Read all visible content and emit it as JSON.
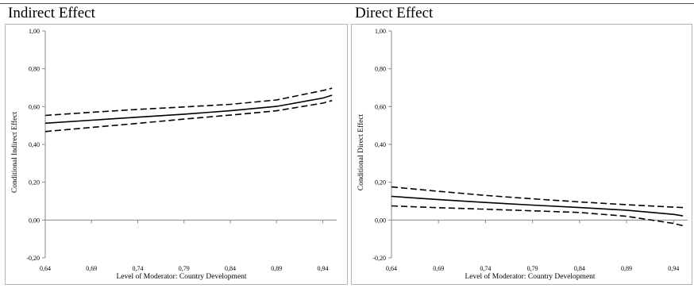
{
  "chart_data": [
    {
      "type": "line",
      "title": "Indirect Effect",
      "xlabel": "Level of Moderator: Country Development",
      "ylabel": "Conditional Indirect Effect",
      "xlim": [
        0.64,
        0.955
      ],
      "ylim": [
        -0.2,
        1.0
      ],
      "xticks": [
        "0,64",
        "0,69",
        "0,74",
        "0,79",
        "0,84",
        "0,89",
        "0,94"
      ],
      "yticks": [
        "-0,20",
        "0,00",
        "0,20",
        "0,40",
        "0,60",
        "0,80",
        "1,00"
      ],
      "grid": false,
      "x": [
        0.64,
        0.69,
        0.74,
        0.79,
        0.84,
        0.89,
        0.94,
        0.95
      ],
      "series": [
        {
          "style": "dashed",
          "values": [
            0.553,
            0.57,
            0.585,
            0.598,
            0.612,
            0.635,
            0.685,
            0.697
          ]
        },
        {
          "style": "solid",
          "values": [
            0.512,
            0.528,
            0.544,
            0.56,
            0.578,
            0.601,
            0.645,
            0.66
          ]
        },
        {
          "style": "dashed",
          "values": [
            0.468,
            0.49,
            0.511,
            0.534,
            0.555,
            0.578,
            0.618,
            0.632
          ]
        }
      ]
    },
    {
      "type": "line",
      "title": "Direct Effect",
      "xlabel": "Level of Moderator: Country Development",
      "ylabel": "Conditional Direct Effect",
      "xlim": [
        0.64,
        0.955
      ],
      "ylim": [
        -0.2,
        1.0
      ],
      "xticks": [
        "0,64",
        "0,69",
        "0,74",
        "0,79",
        "0,84",
        "0,89",
        "0,94"
      ],
      "yticks": [
        "-0,20",
        "0,00",
        "0,20",
        "0,40",
        "0,60",
        "0,80",
        "1,00"
      ],
      "grid": false,
      "x": [
        0.64,
        0.69,
        0.74,
        0.79,
        0.84,
        0.89,
        0.94,
        0.95
      ],
      "series": [
        {
          "style": "dashed",
          "values": [
            0.175,
            0.152,
            0.13,
            0.112,
            0.096,
            0.081,
            0.068,
            0.066
          ]
        },
        {
          "style": "solid",
          "values": [
            0.125,
            0.108,
            0.093,
            0.079,
            0.066,
            0.052,
            0.03,
            0.022
          ]
        },
        {
          "style": "dashed",
          "values": [
            0.075,
            0.065,
            0.057,
            0.049,
            0.04,
            0.02,
            -0.018,
            -0.03
          ]
        }
      ]
    }
  ]
}
